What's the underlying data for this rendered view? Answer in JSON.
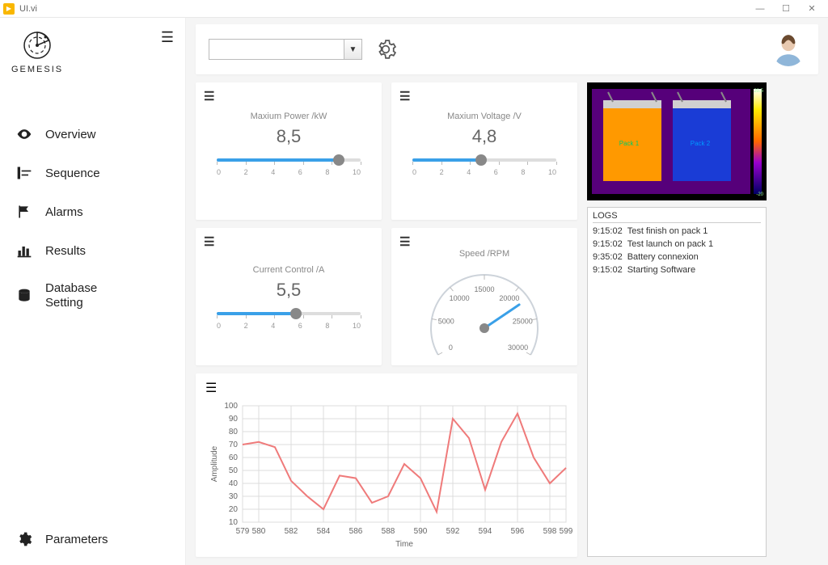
{
  "window": {
    "title": "UI.vi"
  },
  "brand": {
    "name": "GEMESIS"
  },
  "nav": {
    "items": [
      {
        "label": "Overview",
        "icon": "eye"
      },
      {
        "label": "Sequence",
        "icon": "sequence"
      },
      {
        "label": "Alarms",
        "icon": "flag"
      },
      {
        "label": "Results",
        "icon": "bars"
      },
      {
        "label": "Database Setting",
        "icon": "db"
      }
    ],
    "bottom": {
      "label": "Parameters",
      "icon": "cog"
    }
  },
  "topbar": {
    "dropdown_value": ""
  },
  "gauges": {
    "power": {
      "title": "Maxium Power /kW",
      "value": "8,5",
      "numeric": 8.5,
      "min": 0,
      "max": 10,
      "ticks": [
        0,
        2,
        4,
        6,
        8,
        10
      ],
      "fill_color": "#3aa0e8",
      "thumb_color": "#888888"
    },
    "voltage": {
      "title": "Maxium Voltage /V",
      "value": "4,8",
      "numeric": 4.8,
      "min": 0,
      "max": 10,
      "ticks": [
        0,
        2,
        4,
        6,
        8,
        10
      ],
      "fill_color": "#3aa0e8",
      "thumb_color": "#888888"
    },
    "current": {
      "title": "Current Control /A",
      "value": "5,5",
      "numeric": 5.5,
      "min": 0,
      "max": 10,
      "ticks": [
        0,
        2,
        4,
        6,
        8,
        10
      ],
      "fill_color": "#3aa0e8",
      "thumb_color": "#888888"
    }
  },
  "speed_gauge": {
    "title": "Speed /RPM",
    "min": 0,
    "max": 30000,
    "value": 22000,
    "ticks": [
      0,
      5000,
      10000,
      15000,
      20000,
      25000,
      30000
    ],
    "needle_color": "#3aa0e8",
    "knob_color": "#888888",
    "arc_color": "#cdd3da"
  },
  "thermal": {
    "background": "#4b0082",
    "left_fill": "#ff9900",
    "right_fill": "#1040ff",
    "scale_top": "20.5",
    "scale_bottom": "-20",
    "labels": [
      "Pack 1",
      "Pack 2"
    ]
  },
  "logs": {
    "title": "LOGS",
    "entries": [
      {
        "time": "9:15:02",
        "msg": "Test finish on pack 1"
      },
      {
        "time": "9:15:02",
        "msg": "Test launch on pack 1"
      },
      {
        "time": "9:35:02",
        "msg": "Battery connexion"
      },
      {
        "time": "9:15:02",
        "msg": "Starting Software"
      }
    ]
  },
  "chart": {
    "type": "line",
    "xlabel": "Time",
    "ylabel": "Amplitude",
    "ylim": [
      10,
      100
    ],
    "ytick_step": 10,
    "xlim": [
      579,
      599
    ],
    "x_ticks": [
      579,
      580,
      582,
      584,
      586,
      588,
      590,
      592,
      594,
      596,
      598,
      599
    ],
    "series_color": "#ef7a7a",
    "grid_color": "#dcdcdc",
    "background_color": "#ffffff",
    "label_fontsize": 10,
    "points": [
      [
        579,
        70
      ],
      [
        580,
        72
      ],
      [
        581,
        68
      ],
      [
        582,
        42
      ],
      [
        583,
        30
      ],
      [
        584,
        20
      ],
      [
        585,
        46
      ],
      [
        586,
        44
      ],
      [
        587,
        25
      ],
      [
        588,
        30
      ],
      [
        589,
        55
      ],
      [
        590,
        44
      ],
      [
        591,
        18
      ],
      [
        592,
        90
      ],
      [
        593,
        75
      ],
      [
        594,
        35
      ],
      [
        595,
        72
      ],
      [
        596,
        94
      ],
      [
        597,
        60
      ],
      [
        598,
        40
      ],
      [
        599,
        52
      ]
    ]
  },
  "colors": {
    "accent": "#3aa0e8"
  }
}
